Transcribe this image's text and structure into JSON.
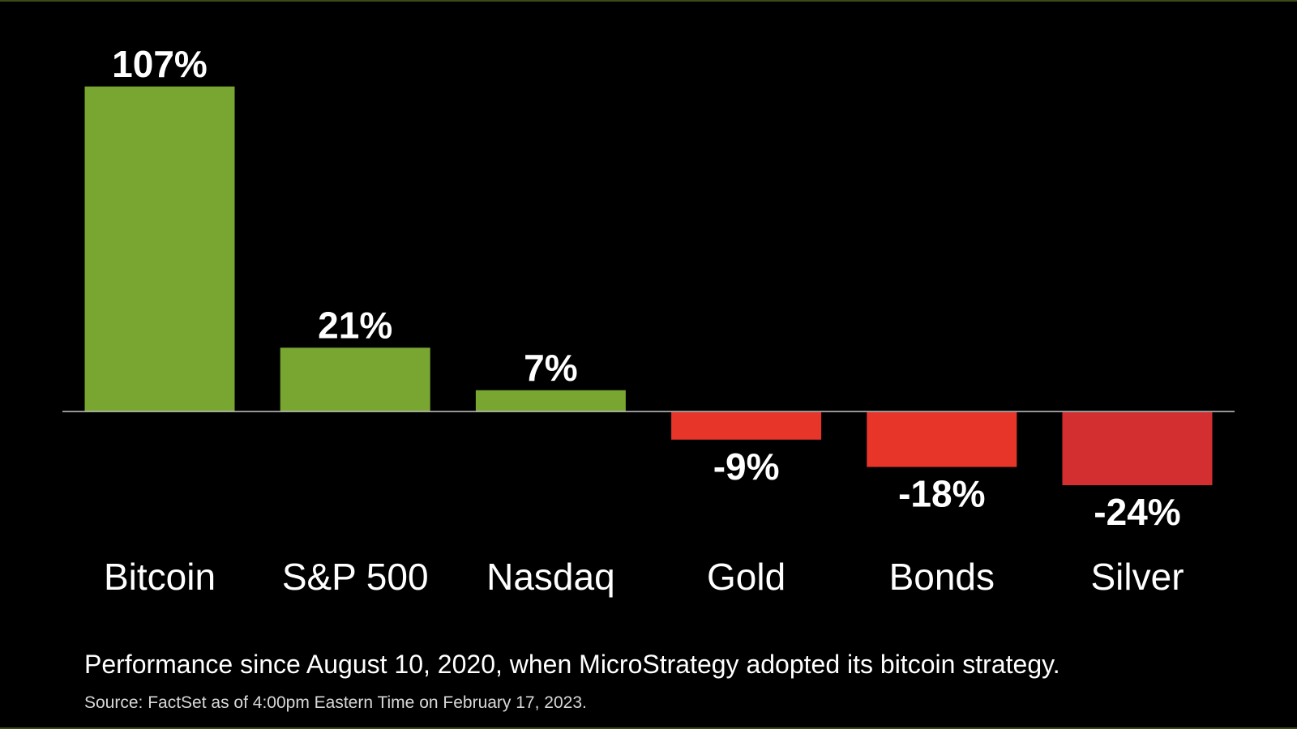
{
  "chart_data": {
    "type": "bar",
    "categories": [
      "Bitcoin",
      "S&P 500",
      "Nasdaq",
      "Gold",
      "Bonds",
      "Silver"
    ],
    "values": [
      107,
      21,
      7,
      -9,
      -18,
      -24
    ],
    "value_labels": [
      "107%",
      "21%",
      "7%",
      "-9%",
      "-18%",
      "-24%"
    ],
    "ylim": [
      -24,
      107
    ],
    "grid": false,
    "legend": "none",
    "colors": {
      "positive": "#79a531",
      "negative": [
        "#e8352a",
        "#e8352a",
        "#d42f30"
      ],
      "baseline": "#c8c8c8",
      "background": "#000000"
    }
  },
  "caption": "Performance since August 10, 2020, when MicroStrategy adopted its bitcoin strategy.",
  "source": "Source: FactSet as of 4:00pm Eastern Time on February 17, 2023."
}
